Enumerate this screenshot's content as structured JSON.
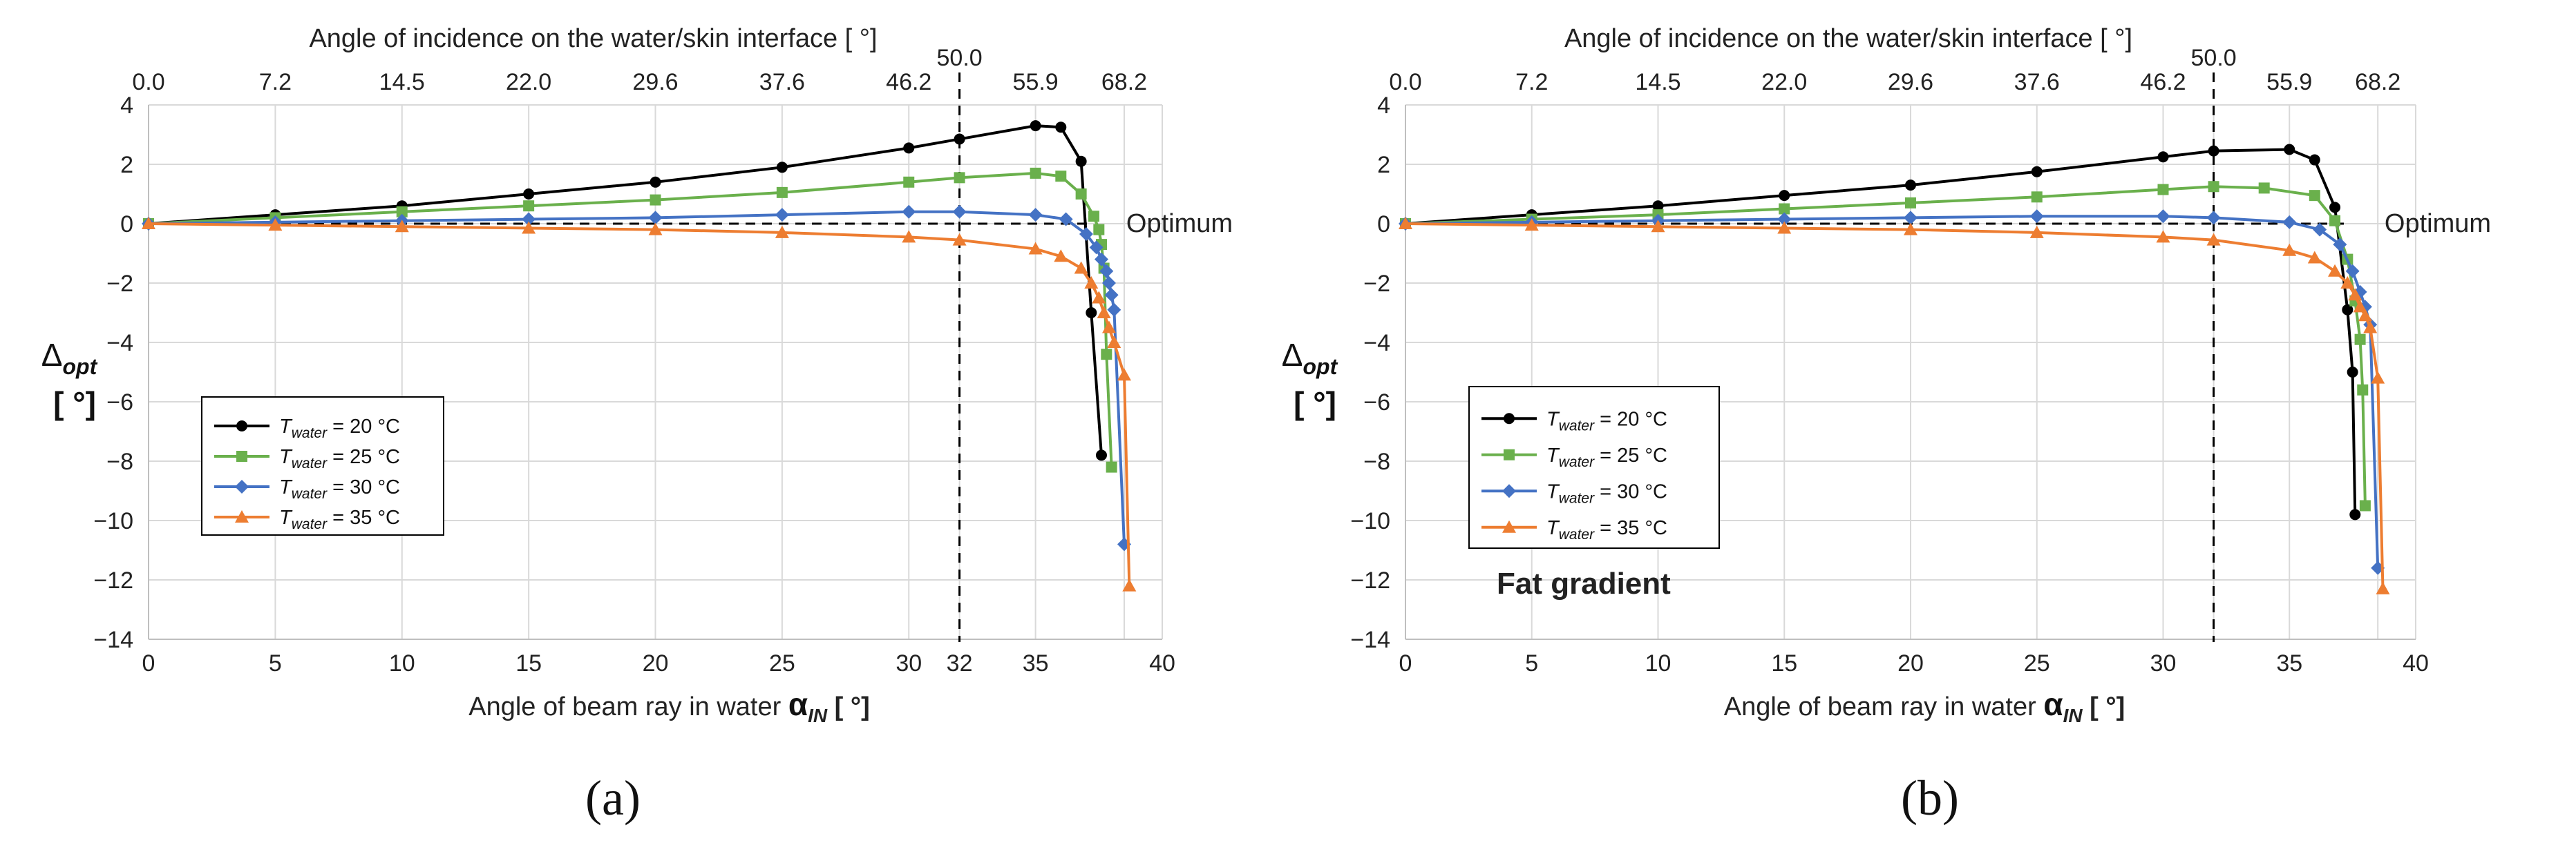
{
  "figure": {
    "panels": [
      {
        "panel_label": "(a)",
        "annotation": "",
        "chart_data": {
          "type": "line",
          "title": "",
          "xlabel": "Angle of beam ray in water",
          "xlabel_symbol": "α",
          "xlabel_subscript": "IN",
          "xlabel_unit": "[ °]",
          "ylabel_symbol": "Δ",
          "ylabel_subscript": "opt",
          "ylabel_unit": "[ °]",
          "x2label": "Angle of incidence on the water/skin interface [ °]",
          "xlim": [
            0,
            40
          ],
          "ylim": [
            -14,
            4
          ],
          "xticks": [
            0,
            5,
            10,
            15,
            20,
            25,
            30,
            32,
            35,
            40
          ],
          "yticks": [
            4,
            2,
            0,
            -2,
            -4,
            -6,
            -8,
            -10,
            -12,
            -14
          ],
          "x2ticks": [
            {
              "label": "0.0",
              "x": 0
            },
            {
              "label": "7.2",
              "x": 5
            },
            {
              "label": "14.5",
              "x": 10
            },
            {
              "label": "22.0",
              "x": 15
            },
            {
              "label": "29.6",
              "x": 20
            },
            {
              "label": "37.6",
              "x": 25
            },
            {
              "label": "46.2",
              "x": 30
            },
            {
              "label": "50.0",
              "x": 32
            },
            {
              "label": "55.9",
              "x": 35
            },
            {
              "label": "68.2",
              "x": 38.5
            }
          ],
          "vline_x": 32,
          "hline_y": 0,
          "hline_label": "Optimum",
          "grid": true,
          "legend_position": "lower-left",
          "series": [
            {
              "name": "T",
              "name_sub": "water",
              "name_rest": " = 20 °C",
              "color": "#000000",
              "marker": "circle",
              "x": [
                0,
                5,
                10,
                15,
                20,
                25,
                30,
                32,
                35,
                36,
                36.8,
                37.2,
                37.6
              ],
              "y": [
                0,
                0.3,
                0.6,
                1.0,
                1.4,
                1.9,
                2.55,
                2.85,
                3.3,
                3.25,
                2.1,
                -3.0,
                -7.8
              ]
            },
            {
              "name": "T",
              "name_sub": "water",
              "name_rest": " = 25 °C",
              "color": "#6ab04c",
              "marker": "square",
              "x": [
                0,
                5,
                10,
                15,
                20,
                25,
                30,
                32,
                35,
                36,
                36.8,
                37.3,
                37.5,
                37.6,
                37.7,
                37.8,
                38.0
              ],
              "y": [
                0,
                0.2,
                0.4,
                0.6,
                0.8,
                1.05,
                1.4,
                1.55,
                1.7,
                1.6,
                1.0,
                0.25,
                -0.2,
                -0.7,
                -1.5,
                -4.4,
                -8.2
              ]
            },
            {
              "name": "T",
              "name_sub": "water",
              "name_rest": " = 30 °C",
              "color": "#4472c4",
              "marker": "diamond",
              "x": [
                0,
                5,
                10,
                15,
                20,
                25,
                30,
                32,
                35,
                36.2,
                37.0,
                37.4,
                37.6,
                37.8,
                37.9,
                38.0,
                38.1,
                38.5
              ],
              "y": [
                0,
                0.05,
                0.1,
                0.15,
                0.2,
                0.3,
                0.4,
                0.4,
                0.3,
                0.15,
                -0.35,
                -0.8,
                -1.2,
                -1.6,
                -2.0,
                -2.4,
                -2.9,
                -10.8
              ]
            },
            {
              "name": "T",
              "name_sub": "water",
              "name_rest": " = 35 °C",
              "color": "#ed7d31",
              "marker": "triangle",
              "x": [
                0,
                5,
                10,
                15,
                20,
                25,
                30,
                32,
                35,
                36,
                36.8,
                37.2,
                37.5,
                37.7,
                37.9,
                38.1,
                38.5,
                38.7
              ],
              "y": [
                0,
                -0.05,
                -0.1,
                -0.15,
                -0.2,
                -0.3,
                -0.45,
                -0.55,
                -0.85,
                -1.1,
                -1.5,
                -2.0,
                -2.5,
                -3.0,
                -3.5,
                -4.0,
                -5.1,
                -12.2
              ]
            }
          ]
        }
      },
      {
        "panel_label": "(b)",
        "annotation": "Fat gradient",
        "chart_data": {
          "type": "line",
          "title": "",
          "xlabel": "Angle of beam ray in water",
          "xlabel_symbol": "α",
          "xlabel_subscript": "IN",
          "xlabel_unit": "[ °]",
          "ylabel_symbol": "Δ",
          "ylabel_subscript": "opt",
          "ylabel_unit": "[ °]",
          "x2label": "Angle of incidence on the water/skin interface [ °]",
          "xlim": [
            0,
            40
          ],
          "ylim": [
            -14,
            4
          ],
          "xticks": [
            0,
            5,
            10,
            15,
            20,
            25,
            30,
            35,
            40
          ],
          "yticks": [
            4,
            2,
            0,
            -2,
            -4,
            -6,
            -8,
            -10,
            -12,
            -14
          ],
          "x2ticks": [
            {
              "label": "0.0",
              "x": 0
            },
            {
              "label": "7.2",
              "x": 5
            },
            {
              "label": "14.5",
              "x": 10
            },
            {
              "label": "22.0",
              "x": 15
            },
            {
              "label": "29.6",
              "x": 20
            },
            {
              "label": "37.6",
              "x": 25
            },
            {
              "label": "46.2",
              "x": 30
            },
            {
              "label": "50.0",
              "x": 32
            },
            {
              "label": "55.9",
              "x": 35
            },
            {
              "label": "68.2",
              "x": 38.5
            }
          ],
          "vline_x": 32,
          "hline_y": 0,
          "hline_label": "Optimum",
          "grid": true,
          "legend_position": "lower-left",
          "series": [
            {
              "name": "T",
              "name_sub": "water",
              "name_rest": " = 20 °C",
              "color": "#000000",
              "marker": "circle",
              "x": [
                0,
                5,
                10,
                15,
                20,
                25,
                30,
                32,
                35,
                36,
                36.8,
                37.3,
                37.5,
                37.6
              ],
              "y": [
                0,
                0.3,
                0.6,
                0.95,
                1.3,
                1.75,
                2.25,
                2.45,
                2.5,
                2.15,
                0.55,
                -2.9,
                -5.0,
                -9.8
              ]
            },
            {
              "name": "T",
              "name_sub": "water",
              "name_rest": " = 25 °C",
              "color": "#6ab04c",
              "marker": "square",
              "x": [
                0,
                5,
                10,
                15,
                20,
                25,
                30,
                32,
                34,
                36,
                36.8,
                37.3,
                37.6,
                37.8,
                37.9,
                38.0
              ],
              "y": [
                0,
                0.15,
                0.3,
                0.5,
                0.7,
                0.9,
                1.15,
                1.25,
                1.2,
                0.95,
                0.1,
                -1.2,
                -2.6,
                -3.9,
                -5.6,
                -9.5
              ]
            },
            {
              "name": "T",
              "name_sub": "water",
              "name_rest": " = 30 °C",
              "color": "#4472c4",
              "marker": "diamond",
              "x": [
                0,
                5,
                10,
                15,
                20,
                25,
                30,
                32,
                35,
                36.2,
                37.0,
                37.5,
                37.8,
                38.0,
                38.2,
                38.5
              ],
              "y": [
                0,
                0.05,
                0.1,
                0.15,
                0.2,
                0.25,
                0.25,
                0.2,
                0.05,
                -0.2,
                -0.7,
                -1.6,
                -2.3,
                -2.8,
                -3.4,
                -11.6
              ]
            },
            {
              "name": "T",
              "name_sub": "water",
              "name_rest": " = 35 °C",
              "color": "#ed7d31",
              "marker": "triangle",
              "x": [
                0,
                5,
                10,
                15,
                20,
                25,
                30,
                32,
                35,
                36,
                36.8,
                37.3,
                37.6,
                37.8,
                38.0,
                38.2,
                38.5,
                38.7
              ],
              "y": [
                0,
                -0.05,
                -0.1,
                -0.15,
                -0.2,
                -0.3,
                -0.45,
                -0.55,
                -0.9,
                -1.15,
                -1.6,
                -2.0,
                -2.4,
                -2.8,
                -3.1,
                -3.5,
                -5.2,
                -12.3
              ]
            }
          ]
        }
      }
    ]
  }
}
